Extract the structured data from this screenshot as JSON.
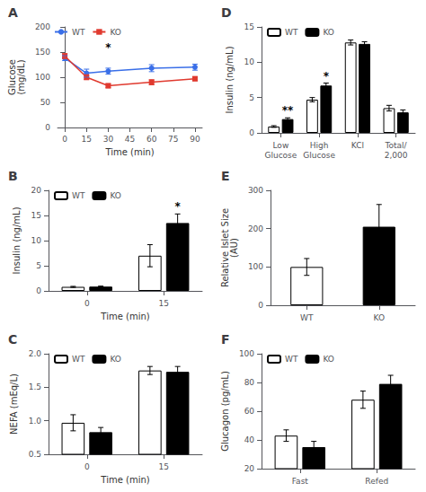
{
  "chart_data": [
    {
      "type": "line",
      "title": "A",
      "xlabel": "Time (min)",
      "ylabel": "Glucose\n(mg/dL)",
      "xlim": [
        -5,
        95
      ],
      "xticks": [
        0,
        15,
        30,
        45,
        60,
        75,
        90
      ],
      "ylim": [
        0,
        200
      ],
      "yticks": [
        0,
        50,
        100,
        150,
        200
      ],
      "series": [
        {
          "name": "WT",
          "color": "#3a6fe8",
          "marker": "circle",
          "x": [
            0,
            15,
            30,
            60,
            90
          ],
          "values": [
            138,
            108,
            112,
            118,
            120
          ],
          "errors": [
            5,
            8,
            6,
            7,
            6
          ]
        },
        {
          "name": "KO",
          "color": "#e03a2f",
          "marker": "square",
          "x": [
            0,
            15,
            30,
            60,
            90
          ],
          "values": [
            142,
            100,
            83,
            90,
            97
          ],
          "errors": [
            5,
            5,
            4,
            5,
            4
          ]
        }
      ],
      "annotations": [
        {
          "text": "*",
          "x": 30,
          "y": 148
        }
      ],
      "legend": "upper left",
      "grid": false
    },
    {
      "type": "bar",
      "title": "B",
      "xlabel": "Time (min)",
      "ylabel": "Insulin (ng/mL)",
      "categories": [
        "0",
        "15"
      ],
      "ylim": [
        0,
        20
      ],
      "yticks": [
        0,
        5,
        10,
        15,
        20
      ],
      "series": [
        {
          "name": "WT",
          "color": "white",
          "values": [
            0.8,
            7.0
          ],
          "errors": [
            0.1,
            2.2
          ]
        },
        {
          "name": "KO",
          "color": "black",
          "values": [
            0.85,
            13.5
          ],
          "errors": [
            0.1,
            1.8
          ]
        }
      ],
      "annotations": [
        {
          "text": "*",
          "x": "15",
          "series": "KO",
          "y": 15.7
        }
      ],
      "legend": "upper left",
      "grid": false
    },
    {
      "type": "bar",
      "title": "C",
      "xlabel": "Time (min)",
      "ylabel": "NEFA (mEq/L)",
      "categories": [
        "0",
        "15"
      ],
      "ylim": [
        0.5,
        2.0
      ],
      "yticks": [
        0.5,
        {
          "value": 1.0,
          "label": "1.0"
        },
        1.5,
        {
          "value": 2.0,
          "label": "2.0"
        }
      ],
      "series": [
        {
          "name": "WT",
          "color": "white",
          "values": [
            0.97,
            1.75
          ],
          "errors": [
            0.12,
            0.06
          ]
        },
        {
          "name": "KO",
          "color": "black",
          "values": [
            0.83,
            1.73
          ],
          "errors": [
            0.07,
            0.08
          ]
        }
      ],
      "legend": "upper left",
      "grid": false
    },
    {
      "type": "bar",
      "title": "D",
      "ylabel": "Insulin (ng/mL)",
      "categories": [
        "Low\nGlucose",
        "High\nGlucose",
        "KCl",
        "Total/\n2,000"
      ],
      "ylim": [
        0,
        15
      ],
      "yticks": [
        0,
        5,
        10,
        15
      ],
      "series": [
        {
          "name": "WT",
          "color": "white",
          "values": [
            0.9,
            4.7,
            12.8,
            3.5
          ],
          "errors": [
            0.12,
            0.3,
            0.35,
            0.4
          ]
        },
        {
          "name": "KO",
          "color": "black",
          "values": [
            1.95,
            6.7,
            12.6,
            2.9
          ],
          "errors": [
            0.18,
            0.35,
            0.3,
            0.35
          ]
        }
      ],
      "annotations": [
        {
          "text": "**",
          "x": "Low\nGlucose",
          "series": "KO",
          "y": 2.38
        },
        {
          "text": "*",
          "x": "High\nGlucose",
          "series": "KO",
          "y": 7.3
        }
      ],
      "legend": "upper left",
      "grid": false
    },
    {
      "type": "bar",
      "title": "E",
      "ylabel": "Relative Islet Size\n(AU)",
      "categories": [
        "WT",
        "KO"
      ],
      "values": [
        100,
        205
      ],
      "errors": [
        22,
        58
      ],
      "colors": [
        "white",
        "black"
      ],
      "ylim": [
        0,
        300
      ],
      "yticks": [
        0,
        100,
        200,
        300
      ],
      "grid": false
    },
    {
      "type": "bar",
      "title": "F",
      "ylabel": "Glucagon (pg/mL)",
      "categories": [
        "Fast",
        "Refed"
      ],
      "ylim": [
        20,
        100
      ],
      "yticks": [
        20,
        40,
        60,
        80,
        100
      ],
      "series": [
        {
          "name": "WT",
          "color": "white",
          "values": [
            43,
            68
          ],
          "errors": [
            4,
            6
          ]
        },
        {
          "name": "KO",
          "color": "black",
          "values": [
            35,
            79
          ],
          "errors": [
            4,
            6
          ]
        }
      ],
      "legend": "upper left",
      "grid": false
    }
  ]
}
